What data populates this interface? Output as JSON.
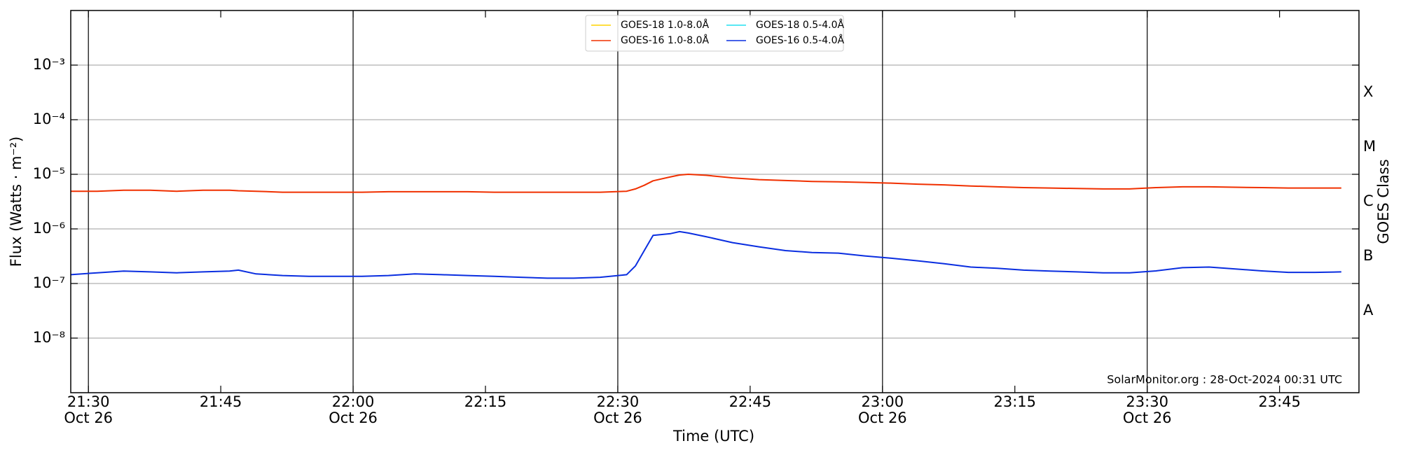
{
  "chart_data": {
    "type": "line",
    "x_label": "Time (UTC)",
    "y_label": "Flux (Watts · m⁻²)",
    "y2_label": "GOES Class",
    "annotation": "SolarMonitor.org : 28-Oct-2024 00:31 UTC",
    "log_y": true,
    "grid": true,
    "legend": "upper center",
    "x": [
      "21:28",
      "21:31",
      "21:34",
      "21:37",
      "21:40",
      "21:43",
      "21:46",
      "21:47",
      "21:49",
      "21:52",
      "21:55",
      "21:58",
      "22:01",
      "22:04",
      "22:07",
      "22:10",
      "22:13",
      "22:16",
      "22:19",
      "22:22",
      "22:25",
      "22:28",
      "22:31",
      "22:32",
      "22:33",
      "22:34",
      "22:36",
      "22:37",
      "22:38",
      "22:40",
      "22:43",
      "22:46",
      "22:49",
      "22:52",
      "22:55",
      "22:58",
      "23:01",
      "23:04",
      "23:07",
      "23:10",
      "23:13",
      "23:16",
      "23:19",
      "23:22",
      "23:25",
      "23:28",
      "23:31",
      "23:34",
      "23:37",
      "23:40",
      "23:43",
      "23:46",
      "23:49",
      "23:52"
    ],
    "xlim": [
      "21:28",
      "23:54"
    ],
    "xticks": [
      {
        "value": "21:30",
        "label": "21:30",
        "date": "Oct 26"
      },
      {
        "value": "21:45",
        "label": "21:45"
      },
      {
        "value": "22:00",
        "label": "22:00",
        "date": "Oct 26"
      },
      {
        "value": "22:15",
        "label": "22:15"
      },
      {
        "value": "22:30",
        "label": "22:30",
        "date": "Oct 26"
      },
      {
        "value": "22:45",
        "label": "22:45"
      },
      {
        "value": "23:00",
        "label": "23:00",
        "date": "Oct 26"
      },
      {
        "value": "23:15",
        "label": "23:15"
      },
      {
        "value": "23:30",
        "label": "23:30",
        "date": "Oct 26"
      },
      {
        "value": "23:45",
        "label": "23:45"
      }
    ],
    "ylim": [
      1e-09,
      0.01
    ],
    "yticks": [
      {
        "value": 0.001,
        "label": "10⁻³"
      },
      {
        "value": 0.0001,
        "label": "10⁻⁴"
      },
      {
        "value": 1e-05,
        "label": "10⁻⁵"
      },
      {
        "value": 1e-06,
        "label": "10⁻⁶"
      },
      {
        "value": 1e-07,
        "label": "10⁻⁷"
      },
      {
        "value": 1e-08,
        "label": "10⁻⁸"
      }
    ],
    "y2lim": [
      1e-09,
      0.01
    ],
    "y2ticks": [
      {
        "value": 3.16e-08,
        "label": "A"
      },
      {
        "value": 3.16e-07,
        "label": "B"
      },
      {
        "value": 3.16e-06,
        "label": "C"
      },
      {
        "value": 3.16e-05,
        "label": "M"
      },
      {
        "value": 0.000316,
        "label": "X"
      }
    ],
    "series": [
      {
        "name": "GOES-18 1.0-8.0Å",
        "color": "#ffd400",
        "values": [
          null,
          null,
          null,
          null,
          null,
          null,
          null,
          null,
          null,
          null,
          null,
          null,
          null,
          null,
          null,
          null,
          null,
          null,
          null,
          null,
          null,
          null,
          null,
          null,
          null,
          null,
          null,
          null,
          null,
          null,
          null,
          null,
          null,
          null,
          null,
          null,
          null,
          null,
          null,
          null,
          null,
          null,
          null,
          null,
          null,
          null,
          null,
          null,
          null,
          null,
          null,
          null,
          null,
          null
        ]
      },
      {
        "name": "GOES-16 1.0-8.0Å",
        "color": "#f03000",
        "values": [
          4.9e-06,
          4.9e-06,
          5.1e-06,
          5.1e-06,
          4.9e-06,
          5.1e-06,
          5.1e-06,
          5e-06,
          4.9e-06,
          4.7e-06,
          4.7e-06,
          4.7e-06,
          4.7e-06,
          4.8e-06,
          4.8e-06,
          4.8e-06,
          4.8e-06,
          4.7e-06,
          4.7e-06,
          4.7e-06,
          4.7e-06,
          4.7e-06,
          4.9e-06,
          5.4e-06,
          6.3e-06,
          7.6e-06,
          9e-06,
          9.7e-06,
          1e-05,
          9.6e-06,
          8.6e-06,
          8e-06,
          7.7e-06,
          7.4e-06,
          7.3e-06,
          7.1e-06,
          6.9e-06,
          6.6e-06,
          6.4e-06,
          6.1e-06,
          5.9e-06,
          5.7e-06,
          5.6e-06,
          5.5e-06,
          5.4e-06,
          5.4e-06,
          5.7e-06,
          5.9e-06,
          5.9e-06,
          5.8e-06,
          5.7e-06,
          5.6e-06,
          5.6e-06,
          5.6e-06
        ]
      },
      {
        "name": "GOES-18 0.5-4.0Å",
        "color": "#22e0f0",
        "values": [
          null,
          null,
          null,
          null,
          null,
          null,
          null,
          null,
          null,
          null,
          null,
          null,
          null,
          null,
          null,
          null,
          null,
          null,
          null,
          null,
          null,
          null,
          null,
          null,
          null,
          null,
          null,
          null,
          null,
          null,
          null,
          null,
          null,
          null,
          null,
          null,
          null,
          null,
          null,
          null,
          null,
          null,
          null,
          null,
          null,
          null,
          null,
          null,
          null,
          null,
          null,
          null,
          null,
          null
        ]
      },
      {
        "name": "GOES-16 0.5-4.0Å",
        "color": "#0a2ee0",
        "values": [
          1.45e-07,
          1.57e-07,
          1.69e-07,
          1.63e-07,
          1.57e-07,
          1.63e-07,
          1.69e-07,
          1.76e-07,
          1.5e-07,
          1.4e-07,
          1.35e-07,
          1.35e-07,
          1.35e-07,
          1.4e-07,
          1.5e-07,
          1.45e-07,
          1.4e-07,
          1.35e-07,
          1.3e-07,
          1.25e-07,
          1.25e-07,
          1.3e-07,
          1.45e-07,
          2.1e-07,
          4e-07,
          7.6e-07,
          8.2e-07,
          8.9e-07,
          8.4e-07,
          7.2e-07,
          5.6e-07,
          4.7e-07,
          4e-07,
          3.7e-07,
          3.6e-07,
          3.2e-07,
          2.9e-07,
          2.6e-07,
          2.3e-07,
          2e-07,
          1.9e-07,
          1.76e-07,
          1.69e-07,
          1.63e-07,
          1.57e-07,
          1.57e-07,
          1.7e-07,
          1.95e-07,
          2e-07,
          1.85e-07,
          1.7e-07,
          1.6e-07,
          1.6e-07,
          1.63e-07
        ]
      }
    ]
  }
}
